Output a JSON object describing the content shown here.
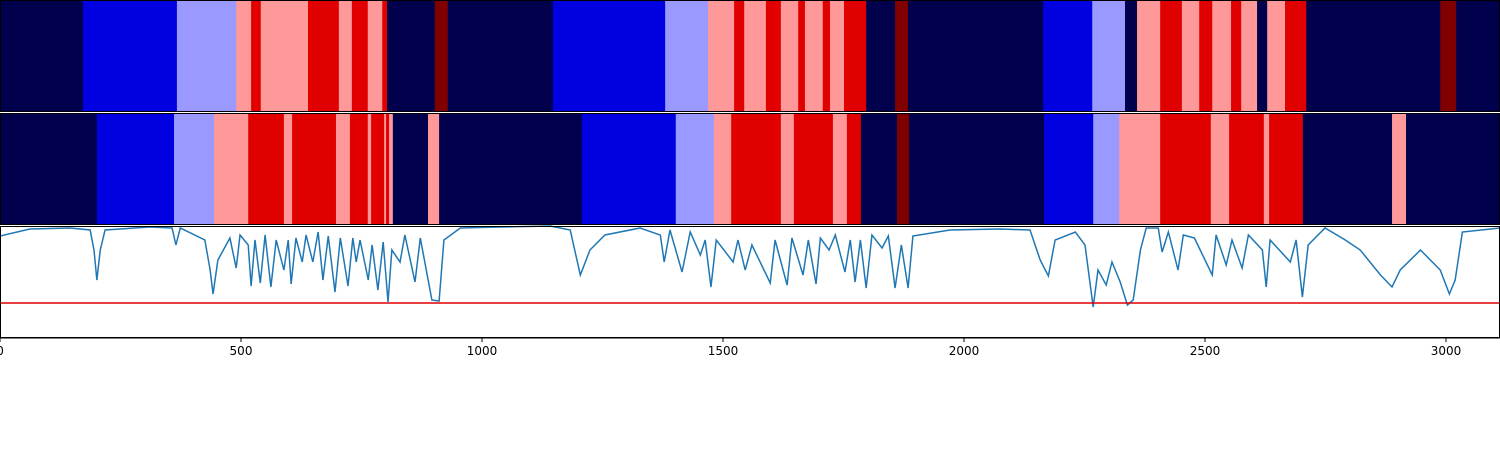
{
  "chart_data": [
    {
      "type": "segments",
      "xlim": [
        0,
        3112
      ],
      "state_colors": [
        "#00004c",
        "#0000e0",
        "#9999ff",
        "#ff9999",
        "#e00000",
        "#800000"
      ],
      "breaks": [
        0,
        172,
        367,
        490,
        521,
        541,
        639,
        703,
        730,
        763,
        793,
        803,
        902,
        929,
        1147,
        1380,
        1469,
        1523,
        1544,
        1589,
        1620,
        1656,
        1670,
        1707,
        1722,
        1751,
        1797,
        1857,
        1884,
        2164,
        2266,
        2334,
        2359,
        2407,
        2452,
        2488,
        2515,
        2554,
        2575,
        2608,
        2629,
        2666,
        2710,
        2988,
        3021,
        3112
      ],
      "states": [
        0,
        1,
        2,
        3,
        4,
        3,
        4,
        3,
        4,
        3,
        4,
        0,
        5,
        0,
        1,
        2,
        3,
        4,
        3,
        4,
        3,
        4,
        3,
        4,
        3,
        4,
        0,
        5,
        0,
        1,
        2,
        0,
        3,
        4,
        3,
        4,
        3,
        4,
        3,
        0,
        3,
        4,
        0,
        5,
        0
      ]
    },
    {
      "type": "segments",
      "xlim": [
        0,
        3112
      ],
      "state_colors": [
        "#00004c",
        "#0000e0",
        "#9999ff",
        "#ff9999",
        "#e00000",
        "#800000"
      ],
      "breaks": [
        0,
        201,
        361,
        444,
        515,
        589,
        606,
        697,
        726,
        763,
        770,
        797,
        801,
        807,
        815,
        888,
        911,
        1207,
        1402,
        1481,
        1517,
        1620,
        1647,
        1728,
        1757,
        1786,
        1861,
        1886,
        2166,
        2268,
        2322,
        2407,
        2512,
        2550,
        2622,
        2633,
        2703,
        2888,
        2917,
        3112
      ],
      "states": [
        0,
        1,
        2,
        3,
        4,
        3,
        4,
        3,
        4,
        3,
        4,
        3,
        4,
        3,
        0,
        3,
        0,
        1,
        2,
        3,
        4,
        3,
        4,
        3,
        4,
        0,
        5,
        0,
        1,
        2,
        3,
        4,
        3,
        4,
        3,
        4,
        0,
        3,
        0
      ]
    },
    {
      "type": "line",
      "xlim": [
        0,
        3112
      ],
      "ylim": [
        0,
        112
      ],
      "xticks": [
        0,
        500,
        1000,
        1500,
        2000,
        2500,
        3000
      ],
      "color": "#1f77b4",
      "hline": 35,
      "hline_color": "#e00000",
      "x": [
        0,
        62,
        145,
        187,
        195,
        201,
        208,
        218,
        311,
        357,
        365,
        374,
        425,
        436,
        442,
        452,
        477,
        490,
        498,
        515,
        521,
        529,
        540,
        550,
        562,
        573,
        589,
        598,
        604,
        614,
        627,
        635,
        649,
        660,
        670,
        681,
        695,
        706,
        722,
        732,
        739,
        747,
        764,
        772,
        784,
        795,
        805,
        813,
        830,
        840,
        861,
        872,
        896,
        911,
        921,
        955,
        1038,
        1141,
        1183,
        1204,
        1224,
        1255,
        1328,
        1370,
        1378,
        1390,
        1415,
        1432,
        1453,
        1463,
        1475,
        1486,
        1521,
        1531,
        1546,
        1560,
        1598,
        1608,
        1633,
        1643,
        1666,
        1677,
        1693,
        1702,
        1720,
        1733,
        1753,
        1764,
        1774,
        1785,
        1797,
        1809,
        1830,
        1843,
        1857,
        1870,
        1884,
        1894,
        1971,
        2075,
        2137,
        2158,
        2175,
        2189,
        2231,
        2251,
        2268,
        2278,
        2295,
        2307,
        2324,
        2339,
        2351,
        2366,
        2378,
        2403,
        2411,
        2424,
        2444,
        2455,
        2478,
        2490,
        2515,
        2523,
        2544,
        2556,
        2577,
        2590,
        2619,
        2627,
        2635,
        2677,
        2689,
        2702,
        2714,
        2749,
        2791,
        2822,
        2864,
        2888,
        2905,
        2947,
        2988,
        3007,
        3019,
        3034,
        3112
      ],
      "values": [
        102,
        109,
        110,
        108,
        88,
        58,
        88,
        108,
        111,
        110,
        93,
        110,
        98,
        68,
        44,
        78,
        100,
        70,
        103,
        93,
        52,
        98,
        55,
        103,
        51,
        98,
        68,
        98,
        54,
        100,
        76,
        103,
        76,
        106,
        58,
        102,
        46,
        100,
        52,
        100,
        76,
        98,
        58,
        93,
        48,
        96,
        36,
        88,
        76,
        103,
        56,
        100,
        38,
        37,
        98,
        110,
        111,
        112,
        108,
        63,
        88,
        103,
        110,
        103,
        76,
        108,
        66,
        106,
        83,
        98,
        51,
        98,
        76,
        98,
        68,
        93,
        55,
        98,
        53,
        100,
        63,
        98,
        54,
        100,
        88,
        103,
        66,
        98,
        56,
        98,
        50,
        103,
        90,
        102,
        50,
        93,
        50,
        102,
        108,
        109,
        108,
        78,
        62,
        98,
        106,
        93,
        31,
        68,
        53,
        76,
        56,
        33,
        38,
        88,
        110,
        110,
        86,
        106,
        68,
        103,
        100,
        88,
        63,
        103,
        73,
        98,
        70,
        103,
        88,
        51,
        98,
        76,
        98,
        41,
        93,
        110,
        98,
        88,
        63,
        51,
        68,
        88,
        68,
        44,
        58,
        106,
        110
      ]
    }
  ]
}
